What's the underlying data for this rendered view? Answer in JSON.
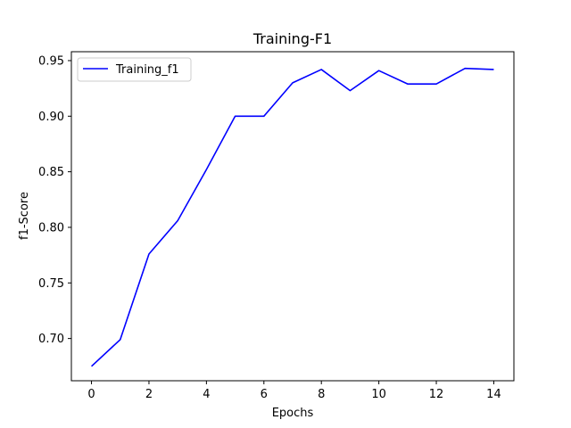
{
  "chart_data": {
    "type": "line",
    "title": "Training-F1",
    "xlabel": "Epochs",
    "ylabel": "f1-Score",
    "xlim": [
      -0.7,
      14.7
    ],
    "ylim": [
      0.662,
      0.958
    ],
    "xticks": [
      0,
      2,
      4,
      6,
      8,
      10,
      12,
      14
    ],
    "yticks": [
      0.7,
      0.75,
      0.8,
      0.85,
      0.9,
      0.95
    ],
    "xtick_labels": [
      "0",
      "2",
      "4",
      "6",
      "8",
      "10",
      "12",
      "14"
    ],
    "ytick_labels": [
      "0.70",
      "0.75",
      "0.80",
      "0.85",
      "0.90",
      "0.95"
    ],
    "grid": false,
    "legend_position": "top-left",
    "series": [
      {
        "name": "Training_f1",
        "color": "#0000ff",
        "x": [
          0,
          1,
          2,
          3,
          4,
          5,
          6,
          7,
          8,
          9,
          10,
          11,
          12,
          13,
          14
        ],
        "y": [
          0.675,
          0.699,
          0.776,
          0.806,
          0.852,
          0.9,
          0.9,
          0.93,
          0.942,
          0.923,
          0.941,
          0.929,
          0.929,
          0.943,
          0.942
        ]
      }
    ]
  }
}
